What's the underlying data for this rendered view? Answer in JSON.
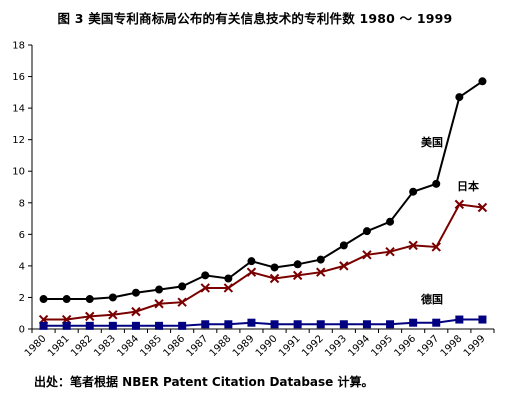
{
  "chart_data": {
    "type": "line",
    "title": "图 3 美国专利商标局公布的有关信息技术的专利件数 1980 ～ 1999",
    "x": [
      "1980",
      "1981",
      "1982",
      "1983",
      "1984",
      "1985",
      "1986",
      "1987",
      "1988",
      "1989",
      "1990",
      "1991",
      "1992",
      "1993",
      "1994",
      "1995",
      "1996",
      "1997",
      "1998",
      "1999"
    ],
    "ylim": [
      0,
      18
    ],
    "yticks": [
      0,
      2,
      4,
      6,
      8,
      10,
      12,
      14,
      16,
      18
    ],
    "grid": false,
    "series": [
      {
        "name": "美国",
        "color": "#000000",
        "marker": "circle",
        "values": [
          1.9,
          1.9,
          1.9,
          2.0,
          2.3,
          2.5,
          2.7,
          3.4,
          3.2,
          4.3,
          3.9,
          4.1,
          4.4,
          5.3,
          6.2,
          6.8,
          8.7,
          9.2,
          14.7,
          15.7
        ]
      },
      {
        "name": "日本",
        "color": "#7a0000",
        "marker": "x",
        "values": [
          0.6,
          0.6,
          0.8,
          0.9,
          1.1,
          1.6,
          1.7,
          2.6,
          2.6,
          3.6,
          3.2,
          3.4,
          3.6,
          4.0,
          4.7,
          4.9,
          5.3,
          5.2,
          7.9,
          7.7
        ]
      },
      {
        "name": "德国",
        "color": "#000080",
        "marker": "square",
        "values": [
          0.2,
          0.2,
          0.2,
          0.2,
          0.2,
          0.2,
          0.2,
          0.3,
          0.3,
          0.4,
          0.3,
          0.3,
          0.3,
          0.3,
          0.3,
          0.3,
          0.4,
          0.4,
          0.6,
          0.6
        ]
      }
    ]
  },
  "source_note": "出处：笔者根据 NBER Patent Citation Database 计算。"
}
